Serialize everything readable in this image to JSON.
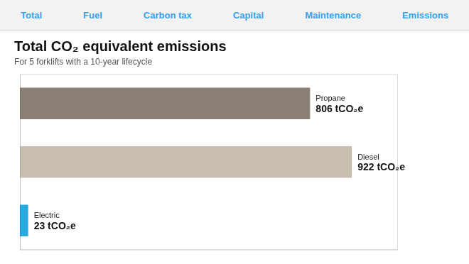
{
  "chart_data": {
    "type": "bar",
    "orientation": "horizontal",
    "title": "Total CO₂ equivalent emissions",
    "subtitle": "For 5 forklifts with a 10-year lifecycle",
    "categories": [
      "Propane",
      "Diesel",
      "Electric"
    ],
    "values": [
      806,
      922,
      23
    ],
    "value_labels": [
      "806 tCO₂e",
      "922 tCO₂e",
      "23 tCO₂e"
    ],
    "colors": [
      "#8b8075",
      "#c8bfb0",
      "#29abe2"
    ],
    "xlim": [
      0,
      1050
    ],
    "grid": false,
    "data_labels": true,
    "tick_labels": false,
    "annotations": [
      "Total",
      "Fuel",
      "Carbon tax",
      "Capital",
      "Maintenance",
      "Emissions"
    ]
  }
}
